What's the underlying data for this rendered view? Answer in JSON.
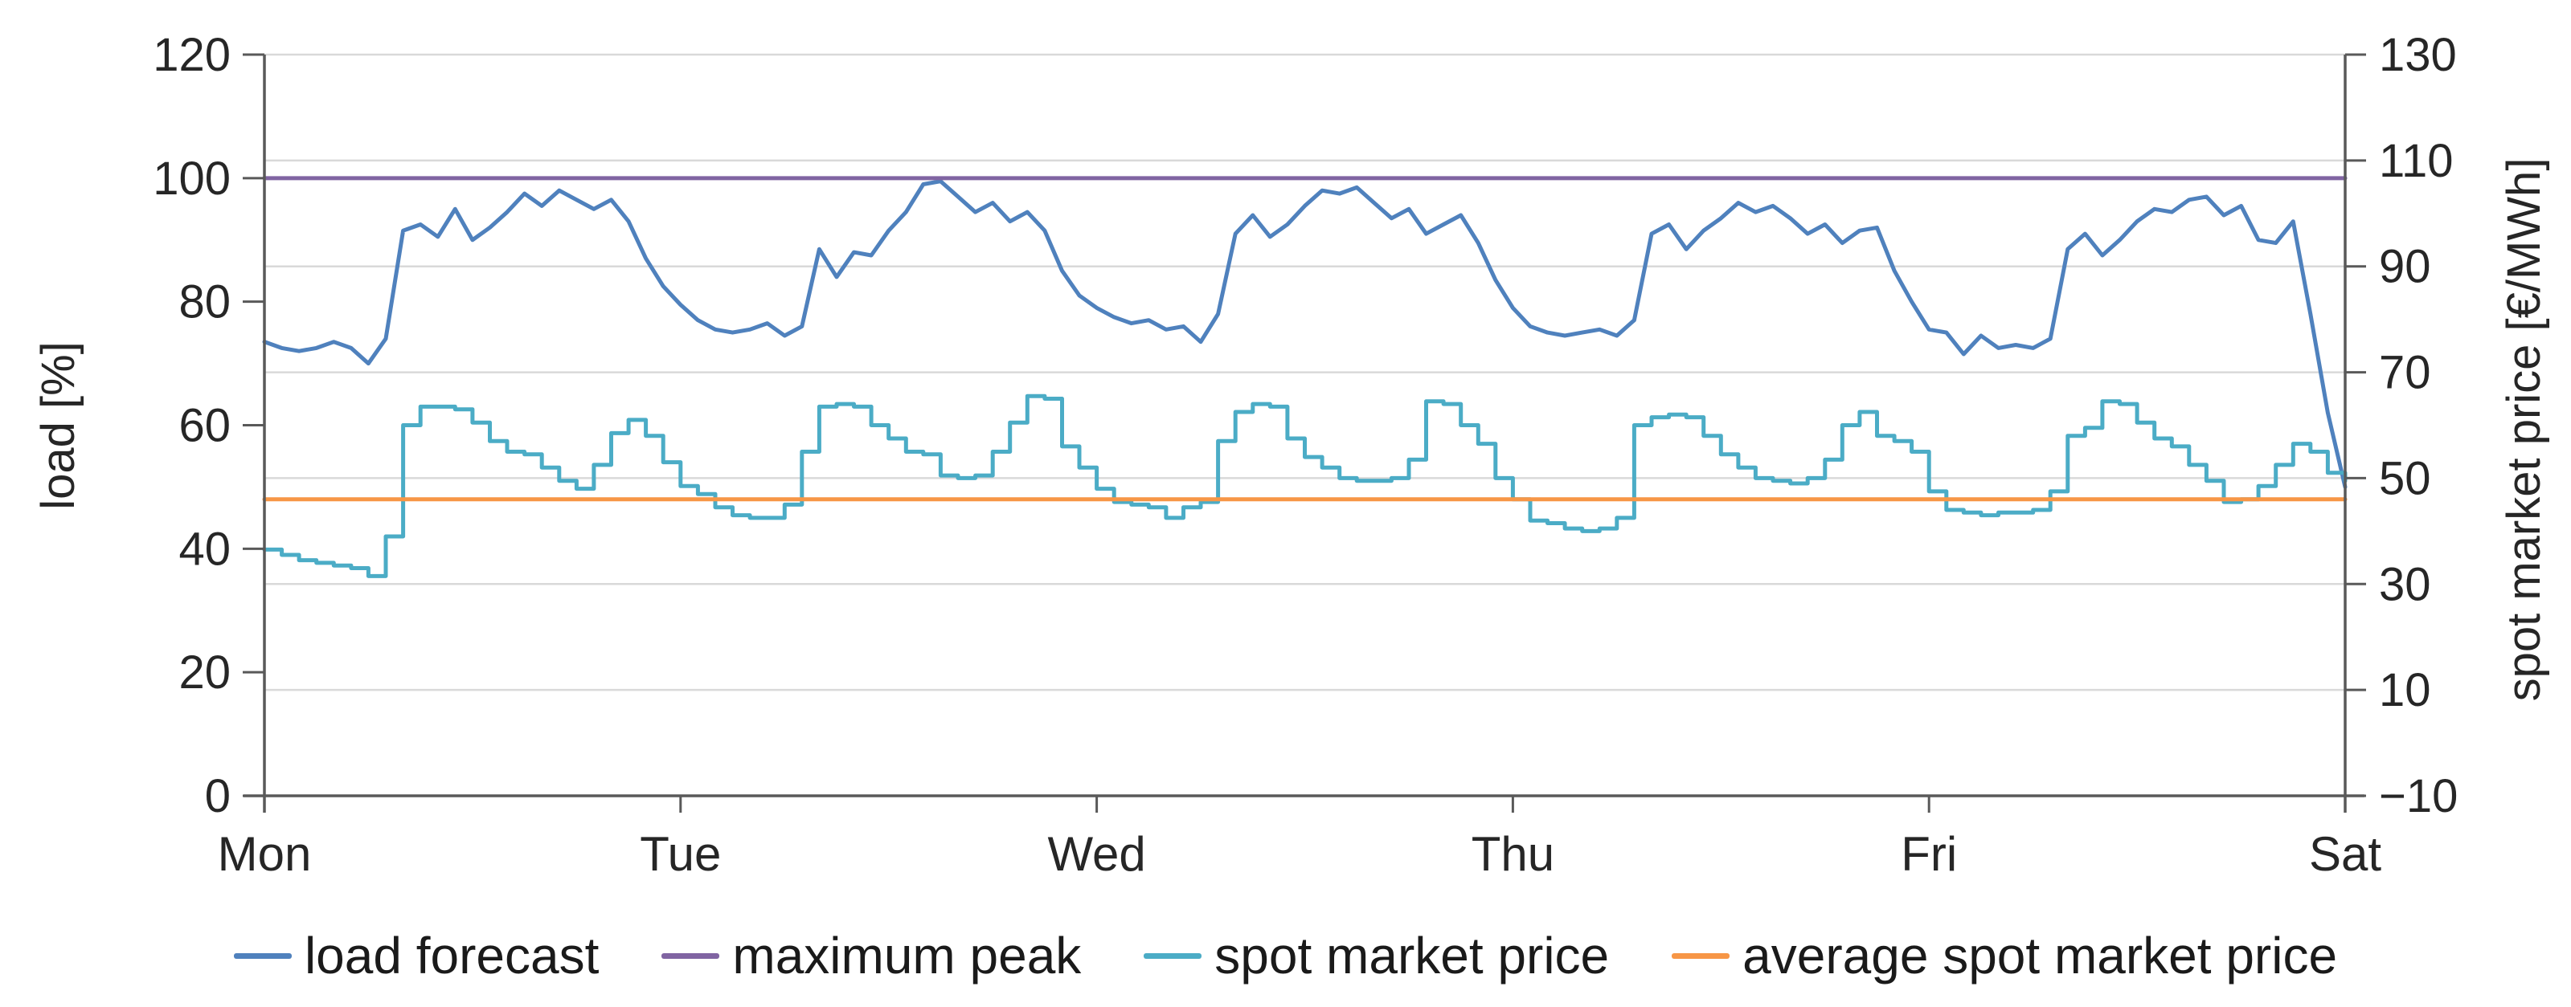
{
  "chart_data": {
    "type": "line",
    "title": "",
    "x_axis": {
      "label": "",
      "categories": [
        "Mon",
        "Tue",
        "Wed",
        "Thu",
        "Fri",
        "Sat"
      ],
      "unit": "day boundaries, data is hourly over 5 days (120 h)"
    },
    "left_axis": {
      "label": "load [%]",
      "min": 0,
      "max": 120,
      "step": 20,
      "ticks": [
        0,
        20,
        40,
        60,
        80,
        100,
        120
      ]
    },
    "right_axis": {
      "label": "spot market price [€/MWh]",
      "min": -10,
      "max": 130,
      "step": 20,
      "ticks": [
        -10,
        10,
        30,
        50,
        70,
        90,
        110,
        130
      ]
    },
    "grid": "horizontal gridlines aligned to right-axis ticks",
    "legend_position": "bottom",
    "series": [
      {
        "name": "load forecast",
        "axis": "left",
        "color": "#4F81BD",
        "style": "line",
        "values": [
          73.5,
          72.5,
          72,
          72.5,
          73.5,
          72.5,
          70,
          74,
          91.5,
          92.5,
          90.5,
          95,
          90,
          92,
          94.5,
          97.5,
          95.5,
          98,
          96.5,
          95,
          96.5,
          93,
          87,
          82.5,
          79.5,
          77,
          75.5,
          75,
          75.5,
          76.5,
          74.5,
          76,
          88.5,
          84,
          88,
          87.5,
          91.5,
          94.5,
          99,
          99.5,
          97,
          94.5,
          96,
          93,
          94.5,
          91.5,
          85,
          81,
          79,
          77.5,
          76.5,
          77,
          75.5,
          76,
          73.5,
          78,
          91,
          94,
          90.5,
          92.5,
          95.5,
          98,
          97.5,
          98.5,
          96,
          93.5,
          95,
          91,
          92.5,
          94,
          89.5,
          83.5,
          79,
          76,
          75,
          74.5,
          75,
          75.5,
          74.5,
          77,
          91,
          92.5,
          88.5,
          91.5,
          93.5,
          96,
          94.5,
          95.5,
          93.5,
          91,
          92.5,
          89.5,
          91.5,
          92,
          85,
          80,
          75.5,
          75,
          71.5,
          74.5,
          72.5,
          73,
          72.5,
          74,
          88.5,
          91,
          87.5,
          90,
          93,
          95,
          94.5,
          96.5,
          97,
          94,
          95.5,
          90,
          89.5,
          93,
          78,
          62,
          50
        ]
      },
      {
        "name": "maximum peak",
        "axis": "left",
        "color": "#8064A2",
        "style": "constant",
        "value": 100
      },
      {
        "name": "spot market price",
        "axis": "right",
        "color": "#4BACC6",
        "style": "step",
        "values": [
          36.5,
          35.5,
          34.5,
          34,
          33.5,
          33,
          31.5,
          39,
          60,
          63.5,
          63.5,
          63,
          60.5,
          57,
          55,
          54.5,
          52,
          49.5,
          48,
          52.5,
          58.5,
          61,
          58,
          53,
          48.5,
          47,
          44.5,
          43,
          42.5,
          42.5,
          45,
          55,
          63.5,
          64,
          63.5,
          60,
          57.5,
          55,
          54.5,
          50.5,
          50,
          50.5,
          55,
          60.5,
          65.5,
          65,
          56,
          52,
          48,
          45.5,
          45,
          44.5,
          42.5,
          44.5,
          45.5,
          57,
          62.5,
          64,
          63.5,
          57.5,
          54,
          52,
          50,
          49.5,
          49.5,
          50,
          53.5,
          64.5,
          64,
          60,
          56.5,
          50,
          46,
          42,
          41.5,
          40.5,
          40,
          40.5,
          42.5,
          60,
          61.5,
          62,
          61.5,
          58,
          54.5,
          52,
          50,
          49.5,
          49,
          50,
          53.5,
          60,
          62.5,
          58,
          57,
          55,
          47.5,
          44,
          43.5,
          43,
          43.5,
          43.5,
          44,
          47.5,
          58,
          59.5,
          64.5,
          64,
          60.5,
          57.5,
          56,
          52.5,
          49.5,
          45.5,
          46,
          48.5,
          52.5,
          56.5,
          55,
          51,
          49.5
        ]
      },
      {
        "name": "average spot market price",
        "axis": "right",
        "color": "#F79646",
        "style": "constant",
        "value": 46
      }
    ]
  },
  "legend": {
    "items": [
      {
        "label": "load forecast",
        "color": "#4F81BD"
      },
      {
        "label": "maximum peak",
        "color": "#8064A2"
      },
      {
        "label": "spot market price",
        "color": "#4BACC6"
      },
      {
        "label": "average spot market price",
        "color": "#F79646"
      }
    ]
  },
  "colors": {
    "background": "#FFFFFF",
    "axis_line": "#595959",
    "gridline": "#D9D9D9",
    "text": "#262626",
    "load_forecast": "#4F81BD",
    "maximum_peak": "#8064A2",
    "spot_market_price": "#4BACC6",
    "average_spot_market_price": "#F79646"
  }
}
